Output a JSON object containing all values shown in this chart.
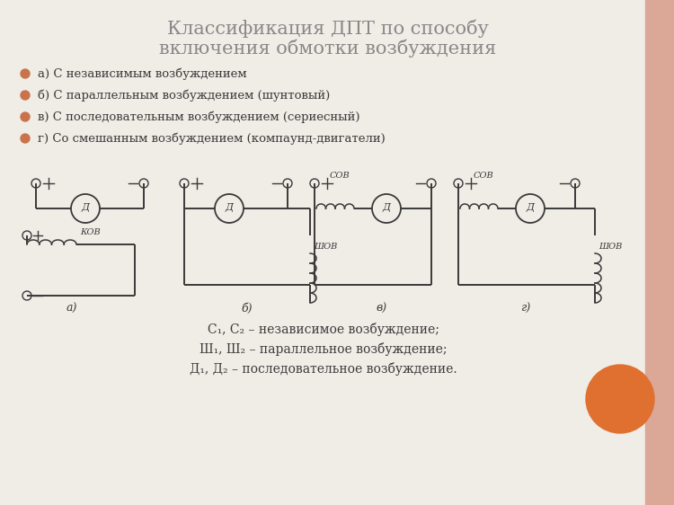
{
  "bg_color": "#f0ece6",
  "title_line1": "Классификация ДПТ по способу",
  "title_line2": "включения обмотки возбуждения",
  "bullet_items": [
    "а) С независимым возбуждением",
    "б) С параллельным возбуждением (шунтовый)",
    "в) С последовательным возбуждением (сериесный)",
    "г) Со смешанным возбуждением (компаунд-двигатели)"
  ],
  "bullet_color": "#c8734a",
  "footer_lines": [
    "С₁, С₂ – независимое возбуждение;",
    "Ш₁, Ш₂ – параллельное возбуждение;",
    "Д₁, Д₂ – последовательное возбуждение."
  ],
  "diagram_labels": [
    "а)",
    "б)",
    "в)",
    "г)"
  ],
  "circle_color": "#e07030",
  "text_color": "#3a3a3a",
  "line_color": "#3a3a3a",
  "right_strip_color": "#dba898",
  "title_color": "#888888"
}
